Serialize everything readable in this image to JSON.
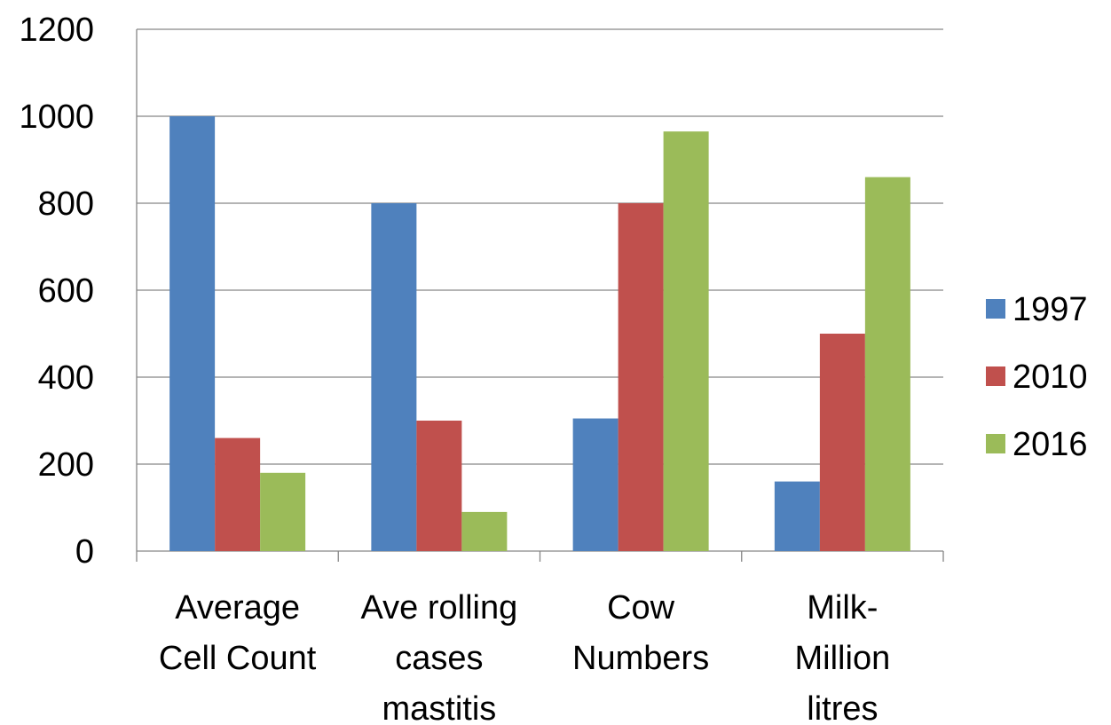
{
  "chart_data": {
    "type": "bar",
    "title": "",
    "xlabel": "",
    "ylabel": "",
    "categories": [
      [
        "Average",
        "Cell Count"
      ],
      [
        "Ave rolling",
        "cases",
        "mastitis"
      ],
      [
        "Cow",
        "Numbers"
      ],
      [
        "Milk-",
        "Million",
        "litres"
      ]
    ],
    "series": [
      {
        "name": "1997",
        "color": "#4f81bd",
        "values": [
          1000,
          800,
          305,
          160
        ]
      },
      {
        "name": "2010",
        "color": "#c0504d",
        "values": [
          260,
          300,
          800,
          500
        ]
      },
      {
        "name": "2016",
        "color": "#9bbb59",
        "values": [
          180,
          90,
          965,
          860
        ]
      }
    ],
    "ylim": [
      0,
      1200
    ],
    "yticks": [
      0,
      200,
      400,
      600,
      800,
      1000,
      1200
    ],
    "grid": true,
    "legend_position": "right"
  }
}
